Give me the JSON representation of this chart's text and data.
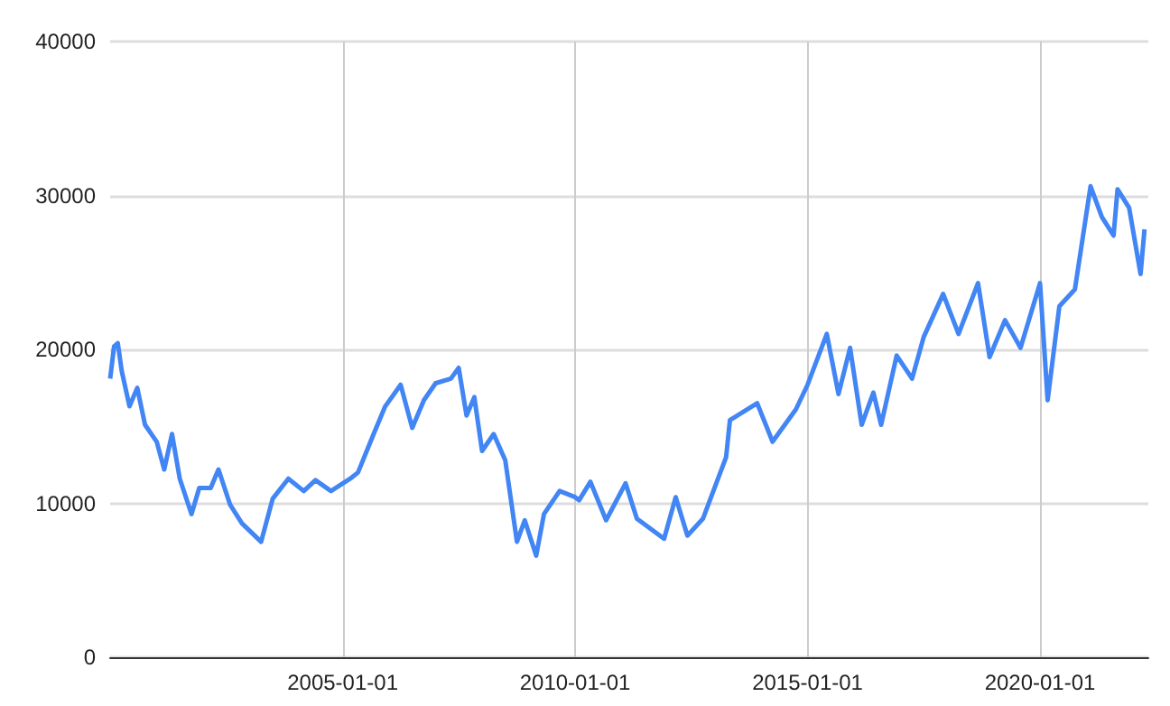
{
  "chart_data": {
    "type": "line",
    "color": "#4285f4",
    "x": [
      "2000-01",
      "2000-02",
      "2000-03",
      "2000-04",
      "2000-06",
      "2000-08",
      "2000-10",
      "2001-01",
      "2001-03",
      "2001-05",
      "2001-07",
      "2001-10",
      "2001-12",
      "2002-03",
      "2002-05",
      "2002-08",
      "2002-11",
      "2003-04",
      "2003-07",
      "2003-11",
      "2004-03",
      "2004-06",
      "2004-10",
      "2005-03",
      "2005-05",
      "2005-09",
      "2005-12",
      "2006-04",
      "2006-07",
      "2006-10",
      "2007-01",
      "2007-05",
      "2007-07",
      "2007-09",
      "2007-11",
      "2008-01",
      "2008-04",
      "2008-07",
      "2008-10",
      "2008-12",
      "2009-03",
      "2009-05",
      "2009-09",
      "2010-01",
      "2010-02",
      "2010-05",
      "2010-09",
      "2011-02",
      "2011-05",
      "2011-12",
      "2012-03",
      "2012-06",
      "2012-10",
      "2013-04",
      "2013-05",
      "2013-12",
      "2014-04",
      "2014-10",
      "2015-01",
      "2015-06",
      "2015-09",
      "2015-12",
      "2016-03",
      "2016-06",
      "2016-08",
      "2016-12",
      "2017-04",
      "2017-07",
      "2017-12",
      "2018-04",
      "2018-09",
      "2018-12",
      "2019-04",
      "2019-08",
      "2020-01",
      "2020-03",
      "2020-06",
      "2020-10",
      "2021-02",
      "2021-05",
      "2021-08",
      "2021-09",
      "2021-12",
      "2022-03",
      "2022-04"
    ],
    "values": [
      18100,
      20200,
      20400,
      18600,
      16300,
      17500,
      15100,
      14000,
      12200,
      14500,
      11600,
      9300,
      11000,
      11000,
      12200,
      9900,
      8700,
      7500,
      10300,
      11600,
      10800,
      11500,
      10800,
      11600,
      12000,
      14500,
      16300,
      17700,
      14900,
      16700,
      17800,
      18100,
      18800,
      15700,
      16900,
      13400,
      14500,
      12800,
      7500,
      8900,
      6600,
      9300,
      10800,
      10400,
      10200,
      11400,
      8900,
      11300,
      9000,
      7700,
      10400,
      7900,
      9000,
      13000,
      15400,
      16500,
      14000,
      16100,
      17700,
      21000,
      17100,
      20100,
      15100,
      17200,
      15100,
      19600,
      18100,
      20800,
      23600,
      21000,
      24300,
      19500,
      21900,
      20100,
      24300,
      16700,
      22800,
      23900,
      30600,
      28600,
      27400,
      30400,
      29200,
      24900,
      27800
    ],
    "xlim": [
      "2000-01-01",
      "2022-05-01"
    ],
    "xticks": [
      "2005-01-01",
      "2010-01-01",
      "2015-01-01",
      "2020-01-01"
    ],
    "ylim": [
      0,
      40000
    ],
    "yticks": [
      0,
      10000,
      20000,
      30000,
      40000
    ],
    "grid": true
  }
}
